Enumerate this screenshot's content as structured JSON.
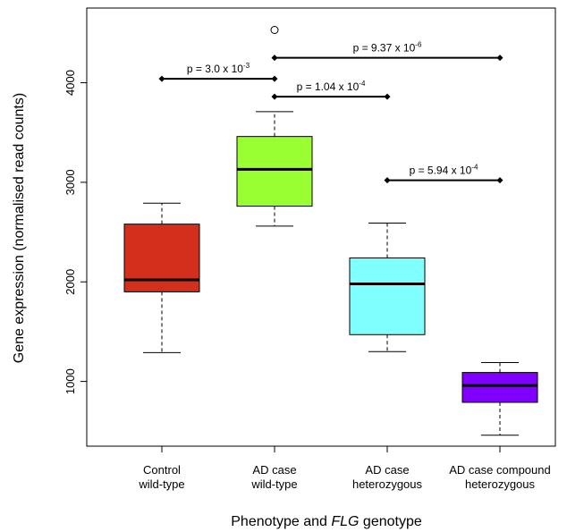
{
  "chart_data": {
    "type": "boxplot",
    "xlabel": "Phenotype and FLG genotype",
    "xlabel_parts": [
      "Phenotype and ",
      "FLG",
      " genotype"
    ],
    "ylabel": "Gene expression (normalised read counts)",
    "ylim": [
      350,
      4750
    ],
    "yticks": [
      1000,
      2000,
      3000,
      4000
    ],
    "grid": false,
    "categories": [
      {
        "line1": "Control",
        "line2": "wild-type"
      },
      {
        "line1": "AD case",
        "line2": "wild-type"
      },
      {
        "line1": "AD case",
        "line2": "heterozygous"
      },
      {
        "line1": "AD case compound",
        "line2": "heterozygous"
      }
    ],
    "boxes": [
      {
        "whisker_low": 1290,
        "q1": 1900,
        "median": 2020,
        "q3": 2580,
        "whisker_high": 2790,
        "outliers": [],
        "color": "#d42f1c"
      },
      {
        "whisker_low": 2560,
        "q1": 2760,
        "median": 3130,
        "q3": 3460,
        "whisker_high": 3710,
        "outliers": [
          4530
        ],
        "color": "#99ff33"
      },
      {
        "whisker_low": 1300,
        "q1": 1470,
        "median": 1980,
        "q3": 2240,
        "whisker_high": 2590,
        "outliers": [],
        "color": "#80ffff"
      },
      {
        "whisker_low": 460,
        "q1": 790,
        "median": 960,
        "q3": 1090,
        "whisker_high": 1190,
        "outliers": [],
        "color": "#7f00ff"
      }
    ],
    "annotations": [
      {
        "from": 0,
        "to": 1,
        "y": 4040,
        "base": "p = 3.0 x 10",
        "exp": "-3"
      },
      {
        "from": 1,
        "to": 3,
        "y": 4250,
        "base": "p = 9.37 x 10",
        "exp": "-6"
      },
      {
        "from": 1,
        "to": 2,
        "y": 3860,
        "base": "p = 1.04 x 10",
        "exp": "-4"
      },
      {
        "from": 2,
        "to": 3,
        "y": 3020,
        "base": "p = 5.94 x 10",
        "exp": "-4"
      }
    ]
  }
}
